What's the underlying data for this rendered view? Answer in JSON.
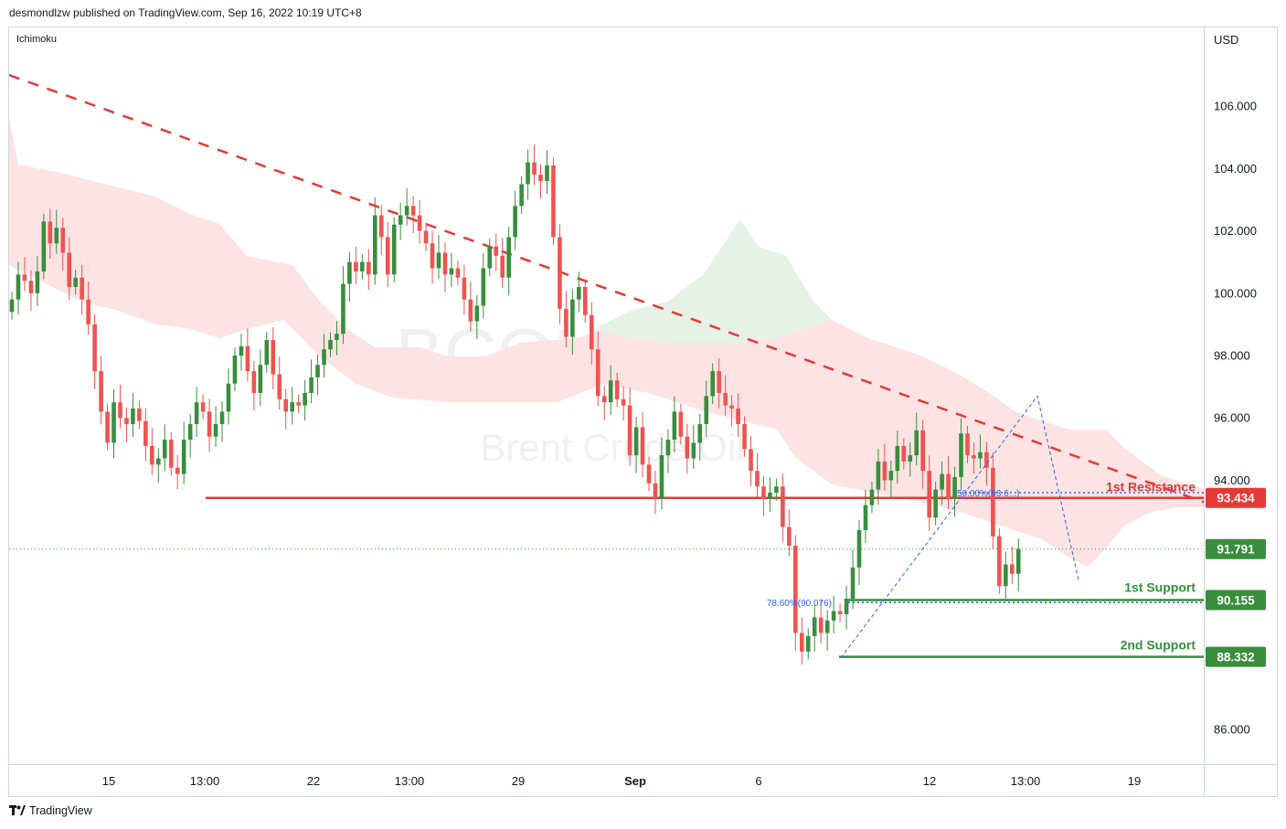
{
  "header": {
    "publisher": "desmondlzw published on TradingView.com, Sep 16, 2022 10:19 UTC+8"
  },
  "footer": {
    "brand": "TradingView"
  },
  "indicator": {
    "name": "Ichimoku"
  },
  "watermark": {
    "symbol": "BCOUSD, 4h",
    "description": "Brent Crude Oil"
  },
  "colors": {
    "up": "#388e3c",
    "down": "#ef5350",
    "resistance": "#e53935",
    "support": "#388e3c",
    "fib": "#2962ff",
    "cloud_bear": "#fde3e3",
    "cloud_bull": "#e5f2e5"
  },
  "chart_data": {
    "type": "candlestick",
    "currency": "USD",
    "ylim": [
      84.5,
      108.5
    ],
    "y_ticks": [
      "106.000",
      "104.000",
      "102.000",
      "100.000",
      "98.000",
      "96.000",
      "94.000",
      "86.000"
    ],
    "x_ticks": [
      "15",
      "13:00",
      "22",
      "13:00",
      "29",
      "Sep",
      "6",
      "12",
      "13:00",
      "19"
    ],
    "price_labels": {
      "resistance": "93.434",
      "last": "91.791",
      "support1": "90.155",
      "support2": "88.332"
    },
    "levels": {
      "resistance": 93.434,
      "last": 91.791,
      "support1": 90.155,
      "support2": 88.332
    },
    "annotations": {
      "resistance": "1st Resistance",
      "support1": "1st Support",
      "support2": "2nd Support",
      "fib50": "50.00%(93.6...)",
      "fib786": "78.60%(90.076)"
    },
    "downtrend_line": {
      "start": [
        0,
        107.0
      ],
      "end": [
        320,
        93.3
      ]
    },
    "closes": [
      99.8,
      100.6,
      100.4,
      100.0,
      100.7,
      102.3,
      101.6,
      102.1,
      101.3,
      100.2,
      100.5,
      99.8,
      99.0,
      97.5,
      96.2,
      95.2,
      96.5,
      96.0,
      95.8,
      96.3,
      95.9,
      95.1,
      94.5,
      94.7,
      95.3,
      94.4,
      94.2,
      95.3,
      95.8,
      96.5,
      96.2,
      95.4,
      95.8,
      96.2,
      97.1,
      98.0,
      98.3,
      97.5,
      96.8,
      97.7,
      98.5,
      97.4,
      96.6,
      96.2,
      96.5,
      96.4,
      96.8,
      97.3,
      97.7,
      98.2,
      98.5,
      98.7,
      100.3,
      101.0,
      100.7,
      101.0,
      100.6,
      102.5,
      101.8,
      100.6,
      102.2,
      102.5,
      102.8,
      102.5,
      102.0,
      101.6,
      100.8,
      101.3,
      100.6,
      100.8,
      100.5,
      99.8,
      99.1,
      99.6,
      100.8,
      101.5,
      101.2,
      100.5,
      101.8,
      102.8,
      103.5,
      104.2,
      103.8,
      103.6,
      104.1,
      101.8,
      99.5,
      98.6,
      99.8,
      100.2,
      99.3,
      98.2,
      96.7,
      96.5,
      97.2,
      96.6,
      96.4,
      94.8,
      95.7,
      94.5,
      93.9,
      93.4,
      94.8,
      95.3,
      96.2,
      95.4,
      94.7,
      95.2,
      95.8,
      96.7,
      97.5,
      96.8,
      96.4,
      96.3,
      95.8,
      95.0,
      94.3,
      93.8,
      93.4,
      93.6,
      93.8,
      92.5,
      91.9,
      89.1,
      88.5,
      89.0,
      89.6,
      89.1,
      89.5,
      89.8,
      89.7,
      90.2,
      91.2,
      92.4,
      93.2,
      93.7,
      94.6,
      94.0,
      94.3,
      95.1,
      94.6,
      94.8,
      95.6,
      94.3,
      92.8,
      93.7,
      94.2,
      93.4,
      94.1,
      95.5,
      94.8,
      94.7,
      94.9,
      94.4,
      92.2,
      90.6,
      91.3,
      91.0,
      91.8
    ]
  }
}
